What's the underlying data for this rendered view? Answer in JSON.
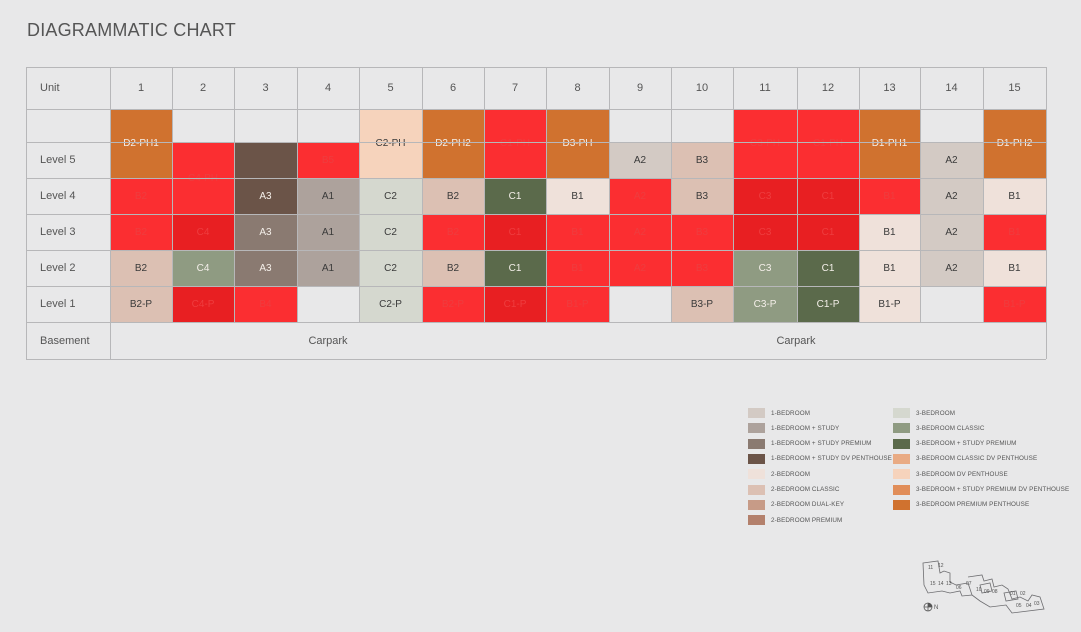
{
  "title": "DIAGRAMMATIC CHART",
  "header": {
    "unit_label": "Unit",
    "units": [
      "1",
      "2",
      "3",
      "4",
      "5",
      "6",
      "7",
      "8",
      "9",
      "10",
      "11",
      "12",
      "13",
      "14",
      "15"
    ]
  },
  "levels": [
    "Level 5",
    "Level 4",
    "Level 3",
    "Level 2",
    "Level 1"
  ],
  "basement": {
    "label": "Basement",
    "left": "Carpark",
    "right": "Carpark"
  },
  "colors": {
    "1b": "#d3cac4",
    "1bs": "#ada29c",
    "1bsp": "#8a7a71",
    "1bsdp": "#6b5448",
    "2b": "#efe1da",
    "2bc": "#dcc0b3",
    "2bdk": "#c79b87",
    "2bp": "#b3806c",
    "3b": "#d5d8cf",
    "3bc": "#8f9b82",
    "3bsp": "#5b6a4b",
    "3bcdp": "#e9ab84",
    "3bdp": "#f6d3bc",
    "3bspdp": "#e18e5a",
    "3bpp": "#d0722f",
    "hl": "#fb2e31",
    "hl2": "#e81f22"
  },
  "rows": [
    [
      "D2-PH1",
      "",
      "",
      "",
      "",
      "",
      "",
      "",
      "",
      "",
      "",
      "",
      "",
      "",
      ""
    ],
    [
      "D2-PH1",
      "C4-PH",
      "A3",
      "B5",
      "C2-PH",
      "D2-PH2",
      "C1-PH",
      "D3-PH",
      "A2",
      "B3",
      "C3-PH",
      "C1-PH",
      "D1-PH1",
      "A2",
      "D1-PH2"
    ],
    [
      "B2",
      "C4-PH",
      "A3",
      "A1",
      "C2",
      "B2",
      "C1",
      "B1",
      "A2",
      "B3",
      "C3",
      "C1",
      "B1",
      "A2",
      "B1"
    ],
    [
      "B2",
      "C4",
      "A3",
      "A1",
      "C2",
      "B2",
      "C1",
      "B1",
      "A2",
      "B3",
      "C3",
      "C1",
      "B1",
      "A2",
      "B1"
    ],
    [
      "B2",
      "C4",
      "A3",
      "A1",
      "C2",
      "B2",
      "C1",
      "B1",
      "A2",
      "B3",
      "C3",
      "C1",
      "B1",
      "A2",
      "B1"
    ],
    [
      "B2-P",
      "C4-P",
      "B4",
      "",
      "C2-P",
      "B2-P",
      "C1-P",
      "B1-P",
      "",
      "B3-P",
      "C3-P",
      "C1-P",
      "B1-P",
      "",
      "B1-P"
    ]
  ],
  "legend": {
    "col1": [
      "1-BEDROOM",
      "1-BEDROOM + STUDY",
      "1-BEDROOM + STUDY PREMIUM",
      "1-BEDROOM + STUDY DV PENTHOUSE",
      "2-BEDROOM",
      "2-BEDROOM CLASSIC",
      "2-BEDROOM DUAL-KEY",
      "2-BEDROOM PREMIUM"
    ],
    "col2": [
      "3-BEDROOM",
      "3-BEDROOM CLASSIC",
      "3-BEDROOM + STUDY PREMIUM",
      "3-BEDROOM CLASSIC DV PENTHOUSE",
      "3-BEDROOM DV PENTHOUSE",
      "3-BEDROOM + STUDY PREMIUM DV PENTHOUSE",
      "3-BEDROOM PREMIUM PENTHOUSE"
    ]
  },
  "keyplan": {
    "labels": [
      "11",
      "12",
      "15",
      "14",
      "13",
      "06",
      "07",
      "10",
      "09",
      "08",
      "01",
      "02",
      "05",
      "04",
      "03"
    ],
    "north": "N"
  }
}
